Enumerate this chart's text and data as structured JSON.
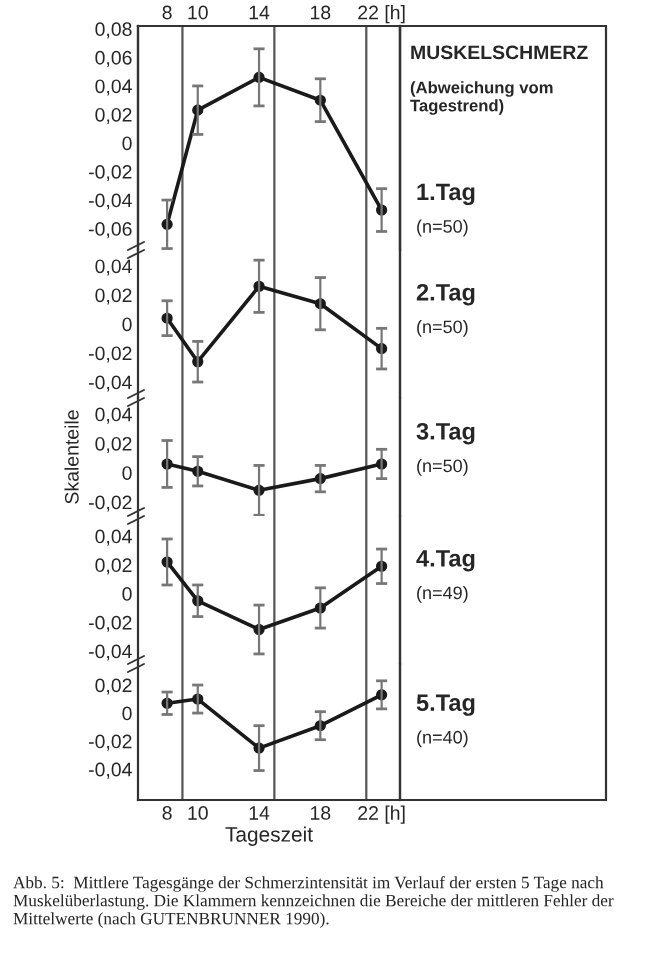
{
  "chart_data": [
    {
      "type": "line",
      "annotations": [
        "MUSKELSCHMERZ",
        "(Abweichung vom Tagestrend)",
        "1.Tag",
        "(n=50)"
      ],
      "marker": "circle",
      "grid": false,
      "tick_labels": "y",
      "x": [
        8,
        10,
        14,
        18,
        22
      ],
      "series": [
        {
          "color": "#1a1a1a",
          "values": [
            -0.057,
            0.023,
            0.046,
            0.03,
            -0.047
          ],
          "errors": [
            0.017,
            0.017,
            0.02,
            0.015,
            0.015
          ]
        }
      ],
      "xlim": [
        6.1,
        23.2
      ],
      "x2lim": [
        6.1,
        23.2
      ],
      "x2ticks": [
        8,
        10,
        14,
        18,
        {
          "value": 22,
          "label": "22 [h]"
        }
      ],
      "ylim": [
        -0.075,
        0.082
      ],
      "yticks": [
        {
          "value": -0.06,
          "label": "-0,06"
        },
        {
          "value": -0.04,
          "label": "-0,04"
        },
        {
          "value": -0.02,
          "label": "-0,02"
        },
        0,
        {
          "value": 0.02,
          "label": "0,02"
        },
        {
          "value": 0.04,
          "label": "0,04"
        },
        {
          "value": 0.06,
          "label": "0,06"
        },
        {
          "value": 0.08,
          "label": "0,08"
        }
      ],
      "ref_lines": [
        {
          "axis": "x",
          "value": 9
        },
        {
          "axis": "x",
          "value": 15
        },
        {
          "axis": "x",
          "value": 21
        }
      ]
    },
    {
      "type": "line",
      "annotations": [
        "2.Tag",
        "(n=50)"
      ],
      "marker": "circle",
      "grid": false,
      "tick_labels": "y",
      "x": [
        8,
        10,
        14,
        18,
        22
      ],
      "series": [
        {
          "color": "#1a1a1a",
          "values": [
            0.004,
            -0.026,
            0.026,
            0.014,
            -0.017
          ],
          "errors": [
            0.012,
            0.014,
            0.018,
            0.018,
            0.014
          ]
        }
      ],
      "xlim": [
        6.1,
        23.2
      ],
      "ylim": [
        -0.051,
        0.051
      ],
      "yticks": [
        {
          "value": -0.04,
          "label": "-0,04"
        },
        {
          "value": -0.02,
          "label": "-0,02"
        },
        0,
        {
          "value": 0.02,
          "label": "0,02"
        },
        {
          "value": 0.04,
          "label": "0,04"
        }
      ],
      "ref_lines": [
        {
          "axis": "x",
          "value": 9
        },
        {
          "axis": "x",
          "value": 15
        },
        {
          "axis": "x",
          "value": 21
        }
      ]
    },
    {
      "type": "line",
      "ylabel": "Skalenteile",
      "annotations": [
        "3.Tag",
        "(n=50)"
      ],
      "marker": "circle",
      "grid": false,
      "tick_labels": "y",
      "x": [
        8,
        10,
        14,
        18,
        22
      ],
      "series": [
        {
          "color": "#1a1a1a",
          "values": [
            0.006,
            0.001,
            -0.012,
            -0.004,
            0.006
          ],
          "errors": [
            0.016,
            0.01,
            0.017,
            0.009,
            0.01
          ]
        }
      ],
      "xlim": [
        6.1,
        23.2
      ],
      "ylim": [
        -0.0295,
        0.051
      ],
      "yticks": [
        {
          "value": -0.02,
          "label": "-0,02"
        },
        0,
        {
          "value": 0.02,
          "label": "0,02"
        },
        {
          "value": 0.04,
          "label": "0,04"
        }
      ],
      "ref_lines": [
        {
          "axis": "x",
          "value": 9
        },
        {
          "axis": "x",
          "value": 15
        },
        {
          "axis": "x",
          "value": 21
        }
      ]
    },
    {
      "type": "line",
      "annotations": [
        "4.Tag",
        "(n=49)"
      ],
      "marker": "circle",
      "grid": false,
      "tick_labels": "y",
      "x": [
        8,
        10,
        14,
        18,
        22
      ],
      "series": [
        {
          "color": "#1a1a1a",
          "values": [
            0.022,
            -0.005,
            -0.025,
            -0.01,
            0.019
          ],
          "errors": [
            0.016,
            0.011,
            0.017,
            0.014,
            0.012
          ]
        }
      ],
      "xlim": [
        6.1,
        23.2
      ],
      "ylim": [
        -0.049,
        0.054
      ],
      "yticks": [
        {
          "value": -0.04,
          "label": "-0,04"
        },
        {
          "value": -0.02,
          "label": "-0,02"
        },
        0,
        {
          "value": 0.02,
          "label": "0,02"
        },
        {
          "value": 0.04,
          "label": "0,04"
        }
      ],
      "ref_lines": [
        {
          "axis": "x",
          "value": 9
        },
        {
          "axis": "x",
          "value": 15
        },
        {
          "axis": "x",
          "value": 21
        }
      ]
    },
    {
      "type": "line",
      "xlabel": "Tageszeit",
      "annotations": [
        "5.Tag",
        "(n=40)",
        "Abb. 5:  Mittlere Tagesgänge der Schmerzintensität im Verlauf der ersten 5 Tage nach Muskelüberlastung. Die Klammern kennzeichnen die Bereiche der mittleren Fehler der Mittelwerte (nach GUTENBRUNNER 1990)."
      ],
      "marker": "circle",
      "grid": false,
      "x": [
        8,
        10,
        14,
        18,
        22
      ],
      "series": [
        {
          "color": "#1a1a1a",
          "values": [
            0.007,
            0.01,
            -0.025,
            -0.009,
            0.013
          ],
          "errors": [
            0.008,
            0.01,
            0.016,
            0.01,
            0.01
          ]
        }
      ],
      "xlim": [
        6.1,
        23.2
      ],
      "xticks": [
        8,
        10,
        14,
        18,
        {
          "value": 22,
          "label": "22 [h]"
        }
      ],
      "ylim": [
        -0.062,
        0.035
      ],
      "yticks": [
        {
          "value": -0.04,
          "label": "-0,04"
        },
        {
          "value": -0.02,
          "label": "-0,02"
        },
        0,
        {
          "value": 0.02,
          "label": "0,02"
        }
      ],
      "ref_lines": [
        {
          "axis": "x",
          "value": 9
        },
        {
          "axis": "x",
          "value": 15
        },
        {
          "axis": "x",
          "value": 21
        }
      ]
    }
  ]
}
